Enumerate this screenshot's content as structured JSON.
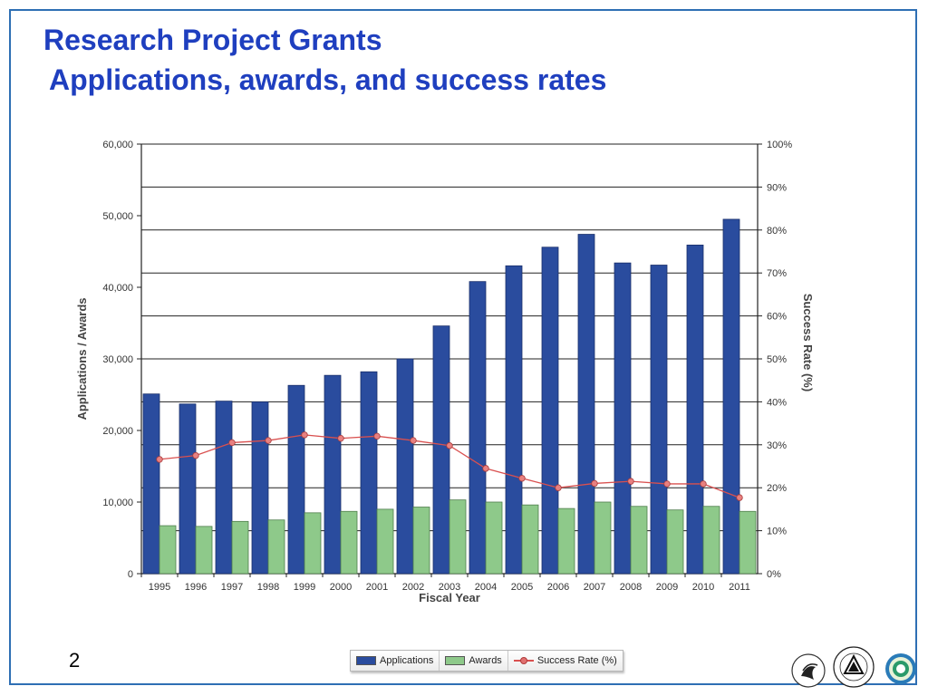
{
  "slide": {
    "title_line1": "Research Project Grants",
    "title_line2": "Applications, awards, and success rates",
    "page_number": "2"
  },
  "colors": {
    "applications": "#2a4c9e",
    "awards": "#8ec98a",
    "success_rate": "#d9504f",
    "title": "#1f3fbf",
    "frame": "#2e6fb4"
  },
  "legend": {
    "applications": "Applications",
    "awards": "Awards",
    "success_rate": "Success Rate (%)"
  },
  "logos": [
    "hhs-seal-icon",
    "nih-seal-icon",
    "oer-logo-icon"
  ],
  "chart_data": {
    "type": "bar",
    "categories": [
      "1995",
      "1996",
      "1997",
      "1998",
      "1999",
      "2000",
      "2001",
      "2002",
      "2003",
      "2004",
      "2005",
      "2006",
      "2007",
      "2008",
      "2009",
      "2010",
      "2011"
    ],
    "series": [
      {
        "name": "Applications",
        "type": "bar",
        "axis": "left",
        "values": [
          25100,
          23700,
          24100,
          24000,
          26300,
          27700,
          28200,
          30000,
          34600,
          40800,
          43000,
          45600,
          47400,
          43400,
          43100,
          45900,
          49500
        ]
      },
      {
        "name": "Awards",
        "type": "bar",
        "axis": "left",
        "values": [
          6700,
          6600,
          7300,
          7500,
          8500,
          8700,
          9000,
          9300,
          10300,
          10000,
          9600,
          9100,
          10000,
          9400,
          8900,
          9400,
          8700
        ]
      },
      {
        "name": "Success Rate (%)",
        "type": "line",
        "axis": "right",
        "values": [
          26.6,
          27.5,
          30.5,
          31.0,
          32.3,
          31.5,
          32.0,
          31.0,
          29.8,
          24.5,
          22.2,
          20.0,
          21.0,
          21.5,
          20.9,
          20.9,
          17.7
        ]
      }
    ],
    "xlabel": "Fiscal Year",
    "ylabel": "Applications / Awards",
    "ylabel_right": "Success Rate (%)",
    "ylim": [
      0,
      60000
    ],
    "ylim_right": [
      0,
      100
    ],
    "yticks": [
      "0",
      "10,000",
      "20,000",
      "30,000",
      "40,000",
      "50,000",
      "60,000"
    ],
    "yticks_right": [
      "0%",
      "10%",
      "20%",
      "30%",
      "40%",
      "50%",
      "60%",
      "70%",
      "80%",
      "90%",
      "100%"
    ],
    "grid": true,
    "legend_position": "bottom"
  }
}
